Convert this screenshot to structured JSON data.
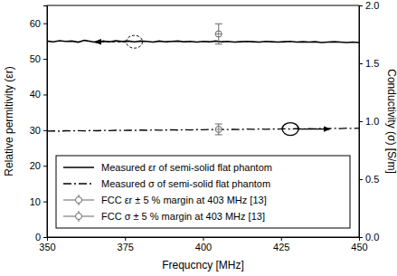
{
  "chart_data": {
    "type": "line",
    "x_label": "Frequcncy [MHz]",
    "y_label": "Relative permitivity (εr)",
    "y2_label": "Conductivity (σ) [S/m]",
    "xlim": [
      350,
      450
    ],
    "xticks": [
      350,
      375,
      400,
      425,
      450
    ],
    "ylim": [
      0,
      65
    ],
    "yticks": [
      0,
      10,
      20,
      30,
      40,
      50,
      60
    ],
    "y2lim": [
      0,
      2
    ],
    "y2ticks": [
      {
        "value": 0,
        "label": "0.0"
      },
      0.5,
      {
        "value": 1,
        "label": "1.0"
      },
      1.5,
      {
        "value": 2,
        "label": "2.0"
      }
    ],
    "legend": "lower center",
    "grid": false,
    "x": [
      350,
      352,
      354,
      356,
      358,
      360,
      362,
      364,
      366,
      368,
      370,
      372,
      374,
      376,
      378,
      380,
      382,
      384,
      386,
      388,
      390,
      392,
      394,
      396,
      398,
      400,
      402,
      404,
      406,
      408,
      410,
      412,
      414,
      416,
      418,
      420,
      422,
      424,
      426,
      428,
      430,
      432,
      434,
      436,
      438,
      440,
      442,
      444,
      446,
      448,
      450
    ],
    "series": [
      {
        "name": "Measured εr of semi-solid flat phantom",
        "color": "#000000",
        "line_style": "solid",
        "type": "line",
        "values": [
          55.0,
          54.8,
          55.1,
          54.9,
          55.0,
          54.7,
          55.2,
          54.9,
          54.6,
          55.0,
          54.8,
          55.1,
          54.9,
          55.0,
          54.8,
          55.0,
          54.9,
          54.7,
          55.0,
          54.8,
          54.9,
          55.0,
          54.8,
          54.9,
          54.7,
          54.9,
          54.8,
          55.0,
          54.8,
          54.9,
          54.7,
          54.8,
          54.9,
          54.8,
          54.7,
          54.9,
          54.8,
          54.7,
          54.8,
          54.9,
          54.7,
          54.8,
          54.7,
          54.8,
          54.6,
          54.7,
          54.8,
          54.7,
          54.6,
          54.7,
          54.6
        ]
      },
      {
        "name": "Measured σ of semi-solid flat phantom",
        "color": "#000000",
        "line_style": "dashdot",
        "type": "line",
        "axis": "y2",
        "values": [
          0.915,
          0.917,
          0.914,
          0.918,
          0.916,
          0.919,
          0.917,
          0.92,
          0.918,
          0.921,
          0.919,
          0.922,
          0.92,
          0.923,
          0.921,
          0.924,
          0.922,
          0.925,
          0.923,
          0.924,
          0.926,
          0.924,
          0.927,
          0.925,
          0.928,
          0.926,
          0.929,
          0.927,
          0.93,
          0.928,
          0.931,
          0.929,
          0.932,
          0.93,
          0.933,
          0.931,
          0.934,
          0.932,
          0.935,
          0.933,
          0.936,
          0.934,
          0.937,
          0.935,
          0.938,
          0.936,
          0.939,
          0.937,
          0.94,
          0.938,
          0.94
        ]
      },
      {
        "name": "FCC εr ± 5 % margin at 403 MHz [13]",
        "color": "#666666",
        "type": "errorbar",
        "marker": "circle",
        "x": [
          405
        ],
        "values": [
          57
        ],
        "error": [
          2.85
        ]
      },
      {
        "name": "FCC σ ± 5 % margin at 403 MHz [13]",
        "color": "#666666",
        "type": "errorbar",
        "marker": "circle",
        "axis": "y2",
        "x": [
          405
        ],
        "values": [
          0.93
        ],
        "error": [
          0.0465
        ]
      }
    ]
  }
}
